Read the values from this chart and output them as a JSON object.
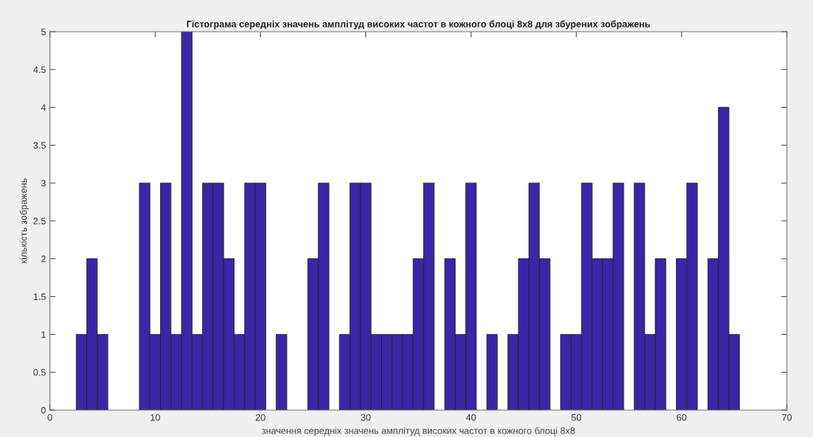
{
  "chart_data": {
    "type": "histogram",
    "title": "Гістограма середніх значень амплітуд високих частот в кожного блоці 8x8 для збурених зображень",
    "xlabel": "значення середніх значень амплітуд високих частот в кожного блоці 8x8",
    "ylabel": "кількість зображень",
    "bins": [
      2.5,
      3.5,
      4.5,
      5.5,
      6.5,
      7.5,
      8.5,
      9.5,
      10.5,
      11.5,
      12.5,
      13.5,
      14.5,
      15.5,
      16.5,
      17.5,
      18.5,
      19.5,
      20.5,
      21.5,
      22.5,
      23.5,
      24.5,
      25.5,
      26.5,
      27.5,
      28.5,
      29.5,
      30.5,
      31.5,
      32.5,
      33.5,
      34.5,
      35.5,
      36.5,
      37.5,
      38.5,
      39.5,
      40.5,
      41.5,
      42.5,
      43.5,
      44.5,
      45.5,
      46.5,
      47.5,
      48.5,
      49.5,
      50.5,
      51.5,
      52.5,
      53.5,
      54.5,
      55.5,
      56.5,
      57.5,
      58.5,
      59.5,
      60.5,
      61.5,
      62.5,
      63.5,
      64.5,
      65.5
    ],
    "values": [
      1,
      2,
      1,
      0,
      0,
      0,
      3,
      1,
      3,
      1,
      5,
      1,
      3,
      3,
      2,
      1,
      3,
      3,
      0,
      1,
      0,
      0,
      2,
      3,
      0,
      1,
      3,
      3,
      1,
      1,
      1,
      1,
      2,
      3,
      0,
      2,
      1,
      3,
      0,
      1,
      0,
      1,
      2,
      3,
      2,
      0,
      1,
      1,
      3,
      2,
      2,
      3,
      0,
      3,
      1,
      2,
      0,
      2,
      3,
      0,
      2,
      4,
      1
    ],
    "color": "#3a26a6",
    "xlim": [
      0,
      70
    ],
    "xticks": [
      0,
      10,
      20,
      30,
      40,
      50,
      60,
      70
    ],
    "ylim": [
      0,
      5
    ],
    "yticks": [
      0,
      0.5,
      1,
      1.5,
      2,
      2.5,
      3,
      3.5,
      4,
      4.5,
      5
    ],
    "grid": false
  }
}
